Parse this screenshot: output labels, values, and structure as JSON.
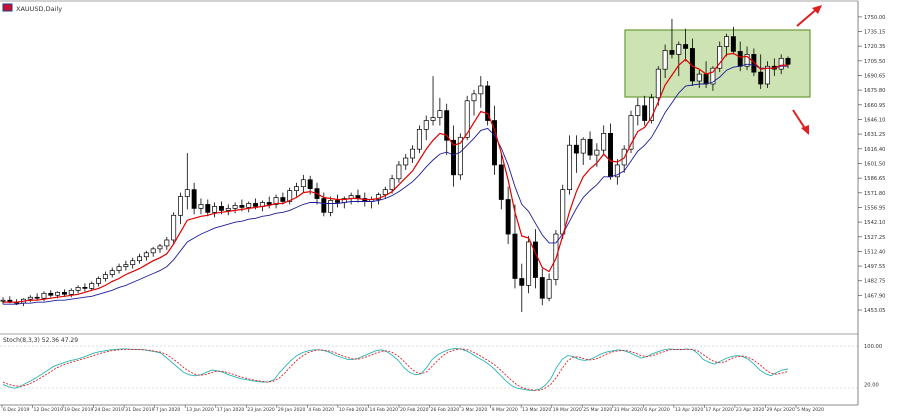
{
  "window": {
    "title": "XAUUSD,Daily",
    "indicator_label": "Stoch(8,3,3) 52.36 47.29"
  },
  "colors": {
    "background": "#ffffff",
    "candle": "#000000",
    "ema_fast": "#e00000",
    "ema_slow": "#1d1d9b",
    "stoch_main": "#2bb5b5",
    "stoch_signal": "#e02020",
    "highlight_fill": "#bcd99a",
    "highlight_stroke": "#6a9b3a",
    "arrow": "#e02020",
    "axis": "#555555"
  },
  "chart_data": [
    {
      "type": "candlestick",
      "instrument": "XAUUSD",
      "timeframe": "Daily",
      "ylim": [
        1447,
        1761
      ],
      "y_ticks": [
        "1750.00",
        "1735.15",
        "1720.35",
        "1705.50",
        "1690.65",
        "1675.80",
        "1660.95",
        "1646.10",
        "1631.25",
        "1616.40",
        "1601.50",
        "1586.65",
        "1571.80",
        "1556.95",
        "1542.10",
        "1527.25",
        "1512.40",
        "1497.55",
        "1482.75",
        "1467.90",
        "1453.05"
      ],
      "x_ticks": [
        "6 Dec 2019",
        "12 Dec 2019",
        "19 Dec 2019",
        "24 Dec 2019",
        "31 Dec 2019",
        "7 Jan 2020",
        "13 Jan 2020",
        "17 Jan 2020",
        "23 Jan 2020",
        "29 Jan 2020",
        "4 Feb 2020",
        "10 Feb 2020",
        "14 Feb 2020",
        "20 Feb 2020",
        "26 Feb 2020",
        "3 Mar 2020",
        "9 Mar 2020",
        "13 Mar 2020",
        "19 Mar 2020",
        "25 Mar 2020",
        "31 Mar 2020",
        "6 Apr 2020",
        "13 Apr 2020",
        "17 Apr 2020",
        "23 Apr 2020",
        "29 Apr 2020",
        "5 May 2020"
      ],
      "ema_fast_name": "",
      "ema_slow_name": "",
      "annotation": "consolidation box with breakout arrows up and down",
      "ohlc": [
        [
          1462,
          1466,
          1459,
          1463
        ],
        [
          1463,
          1467,
          1460,
          1461
        ],
        [
          1461,
          1464,
          1458,
          1460
        ],
        [
          1460,
          1465,
          1457,
          1464
        ],
        [
          1464,
          1468,
          1461,
          1466
        ],
        [
          1466,
          1470,
          1463,
          1465
        ],
        [
          1465,
          1472,
          1462,
          1470
        ],
        [
          1470,
          1473,
          1466,
          1468
        ],
        [
          1468,
          1472,
          1465,
          1471
        ],
        [
          1471,
          1474,
          1467,
          1469
        ],
        [
          1469,
          1475,
          1466,
          1473
        ],
        [
          1473,
          1478,
          1470,
          1476
        ],
        [
          1476,
          1480,
          1472,
          1475
        ],
        [
          1475,
          1482,
          1473,
          1480
        ],
        [
          1480,
          1487,
          1477,
          1485
        ],
        [
          1485,
          1492,
          1482,
          1489
        ],
        [
          1489,
          1496,
          1486,
          1493
        ],
        [
          1493,
          1500,
          1490,
          1497
        ],
        [
          1497,
          1503,
          1493,
          1499
        ],
        [
          1499,
          1506,
          1495,
          1503
        ],
        [
          1503,
          1510,
          1500,
          1507
        ],
        [
          1507,
          1513,
          1503,
          1511
        ],
        [
          1511,
          1517,
          1507,
          1515
        ],
        [
          1515,
          1520,
          1511,
          1518
        ],
        [
          1518,
          1527,
          1514,
          1524
        ],
        [
          1524,
          1552,
          1520,
          1549
        ],
        [
          1549,
          1572,
          1540,
          1568
        ],
        [
          1568,
          1612,
          1555,
          1575
        ],
        [
          1575,
          1582,
          1550,
          1556
        ],
        [
          1556,
          1566,
          1550,
          1560
        ],
        [
          1560,
          1565,
          1548,
          1552
        ],
        [
          1552,
          1562,
          1547,
          1558
        ],
        [
          1558,
          1563,
          1550,
          1554
        ],
        [
          1554,
          1560,
          1549,
          1556
        ],
        [
          1556,
          1562,
          1551,
          1559
        ],
        [
          1559,
          1565,
          1553,
          1557
        ],
        [
          1557,
          1563,
          1552,
          1561
        ],
        [
          1561,
          1566,
          1555,
          1558
        ],
        [
          1558,
          1564,
          1553,
          1562
        ],
        [
          1562,
          1568,
          1556,
          1560
        ],
        [
          1560,
          1570,
          1556,
          1567
        ],
        [
          1567,
          1572,
          1560,
          1563
        ],
        [
          1563,
          1577,
          1560,
          1574
        ],
        [
          1574,
          1582,
          1568,
          1578
        ],
        [
          1578,
          1590,
          1572,
          1585
        ],
        [
          1585,
          1589,
          1570,
          1576
        ],
        [
          1576,
          1582,
          1560,
          1566
        ],
        [
          1566,
          1572,
          1548,
          1552
        ],
        [
          1552,
          1568,
          1548,
          1564
        ],
        [
          1564,
          1570,
          1557,
          1562
        ],
        [
          1562,
          1568,
          1556,
          1566
        ],
        [
          1566,
          1572,
          1560,
          1569
        ],
        [
          1569,
          1575,
          1562,
          1566
        ],
        [
          1566,
          1572,
          1558,
          1563
        ],
        [
          1563,
          1568,
          1556,
          1565
        ],
        [
          1565,
          1572,
          1560,
          1570
        ],
        [
          1570,
          1578,
          1566,
          1575
        ],
        [
          1575,
          1590,
          1571,
          1586
        ],
        [
          1586,
          1604,
          1582,
          1600
        ],
        [
          1600,
          1611,
          1595,
          1607
        ],
        [
          1607,
          1620,
          1602,
          1616
        ],
        [
          1616,
          1640,
          1612,
          1636
        ],
        [
          1636,
          1650,
          1625,
          1645
        ],
        [
          1645,
          1690,
          1640,
          1648
        ],
        [
          1648,
          1668,
          1640,
          1655
        ],
        [
          1655,
          1662,
          1610,
          1625
        ],
        [
          1625,
          1640,
          1578,
          1590
        ],
        [
          1590,
          1632,
          1585,
          1628
        ],
        [
          1628,
          1670,
          1625,
          1665
        ],
        [
          1665,
          1676,
          1650,
          1672
        ],
        [
          1672,
          1690,
          1658,
          1680
        ],
        [
          1680,
          1685,
          1640,
          1645
        ],
        [
          1645,
          1660,
          1590,
          1600
        ],
        [
          1600,
          1612,
          1555,
          1565
        ],
        [
          1565,
          1578,
          1520,
          1530
        ],
        [
          1530,
          1560,
          1475,
          1485
        ],
        [
          1485,
          1500,
          1451,
          1478
        ],
        [
          1478,
          1528,
          1470,
          1522
        ],
        [
          1522,
          1535,
          1475,
          1486
        ],
        [
          1486,
          1495,
          1458,
          1465
        ],
        [
          1465,
          1490,
          1462,
          1484
        ],
        [
          1484,
          1534,
          1478,
          1530
        ],
        [
          1530,
          1580,
          1525,
          1575
        ],
        [
          1575,
          1630,
          1570,
          1620
        ],
        [
          1620,
          1630,
          1592,
          1612
        ],
        [
          1612,
          1628,
          1600,
          1626
        ],
        [
          1626,
          1634,
          1605,
          1610
        ],
        [
          1610,
          1622,
          1598,
          1615
        ],
        [
          1615,
          1640,
          1610,
          1632
        ],
        [
          1632,
          1642,
          1585,
          1588
        ],
        [
          1588,
          1606,
          1580,
          1600
        ],
        [
          1600,
          1620,
          1592,
          1616
        ],
        [
          1616,
          1655,
          1612,
          1650
        ],
        [
          1650,
          1668,
          1640,
          1660
        ],
        [
          1660,
          1670,
          1640,
          1645
        ],
        [
          1645,
          1672,
          1642,
          1668
        ],
        [
          1668,
          1700,
          1660,
          1697
        ],
        [
          1697,
          1722,
          1688,
          1716
        ],
        [
          1716,
          1748,
          1708,
          1712
        ],
        [
          1712,
          1725,
          1690,
          1722
        ],
        [
          1722,
          1738,
          1705,
          1718
        ],
        [
          1718,
          1728,
          1680,
          1685
        ],
        [
          1685,
          1696,
          1678,
          1692
        ],
        [
          1692,
          1705,
          1678,
          1682
        ],
        [
          1682,
          1700,
          1675,
          1698
        ],
        [
          1698,
          1725,
          1694,
          1720
        ],
        [
          1720,
          1733,
          1710,
          1730
        ],
        [
          1730,
          1740,
          1712,
          1715
        ],
        [
          1715,
          1725,
          1695,
          1700
        ],
        [
          1700,
          1720,
          1696,
          1712
        ],
        [
          1712,
          1718,
          1690,
          1694
        ],
        [
          1694,
          1712,
          1677,
          1682
        ],
        [
          1682,
          1705,
          1678,
          1700
        ],
        [
          1700,
          1708,
          1690,
          1697
        ],
        [
          1697,
          1712,
          1692,
          1708
        ],
        [
          1708,
          1710,
          1698,
          1702
        ]
      ],
      "ema_fast": [
        1461,
        1461,
        1461,
        1462,
        1463,
        1463,
        1464,
        1465,
        1466,
        1467,
        1468,
        1469,
        1471,
        1473,
        1475,
        1478,
        1482,
        1485,
        1489,
        1492,
        1495,
        1499,
        1503,
        1506,
        1510,
        1520,
        1532,
        1544,
        1546,
        1548,
        1549,
        1551,
        1552,
        1553,
        1554,
        1555,
        1556,
        1557,
        1558,
        1559,
        1561,
        1561,
        1564,
        1567,
        1572,
        1573,
        1571,
        1567,
        1566,
        1565,
        1565,
        1566,
        1566,
        1565,
        1565,
        1566,
        1569,
        1573,
        1580,
        1587,
        1594,
        1605,
        1616,
        1625,
        1632,
        1630,
        1620,
        1622,
        1632,
        1643,
        1654,
        1652,
        1636,
        1612,
        1585,
        1552,
        1528,
        1526,
        1511,
        1496,
        1492,
        1505,
        1528,
        1553,
        1573,
        1588,
        1596,
        1602,
        1611,
        1604,
        1603,
        1607,
        1621,
        1634,
        1638,
        1648,
        1664,
        1681,
        1691,
        1701,
        1707,
        1700,
        1697,
        1692,
        1694,
        1703,
        1712,
        1713,
        1709,
        1710,
        1704,
        1697,
        1698,
        1698,
        1701,
        1701
      ],
      "ema_slow": [
        1459,
        1459,
        1459,
        1460,
        1460,
        1461,
        1461,
        1462,
        1463,
        1463,
        1464,
        1465,
        1466,
        1467,
        1469,
        1471,
        1473,
        1476,
        1478,
        1481,
        1484,
        1487,
        1490,
        1493,
        1497,
        1504,
        1513,
        1522,
        1526,
        1530,
        1533,
        1536,
        1538,
        1540,
        1542,
        1543,
        1545,
        1546,
        1548,
        1549,
        1551,
        1552,
        1554,
        1557,
        1560,
        1562,
        1562,
        1561,
        1561,
        1561,
        1562,
        1563,
        1563,
        1563,
        1563,
        1564,
        1566,
        1569,
        1573,
        1578,
        1583,
        1590,
        1598,
        1605,
        1611,
        1613,
        1610,
        1613,
        1620,
        1627,
        1635,
        1637,
        1630,
        1617,
        1600,
        1578,
        1560,
        1553,
        1541,
        1529,
        1521,
        1521,
        1530,
        1543,
        1556,
        1567,
        1574,
        1580,
        1588,
        1588,
        1590,
        1594,
        1604,
        1614,
        1620,
        1628,
        1640,
        1653,
        1663,
        1673,
        1680,
        1681,
        1682,
        1682,
        1684,
        1689,
        1696,
        1699,
        1700,
        1702,
        1701,
        1698,
        1698,
        1698,
        1700,
        1700
      ]
    },
    {
      "type": "line",
      "name": "Stoch(8,3,3)",
      "ylim": [
        0,
        100
      ],
      "y_ticks": [
        "100.00",
        "20.00"
      ],
      "main": [
        20,
        15,
        12,
        15,
        22,
        28,
        35,
        42,
        50,
        58,
        62,
        66,
        70,
        72,
        76,
        80,
        85,
        88,
        90,
        92,
        93,
        94,
        94,
        93,
        93,
        92,
        90,
        88,
        85,
        75,
        65,
        55,
        45,
        40,
        38,
        40,
        45,
        50,
        48,
        45,
        40,
        36,
        32,
        30,
        28,
        26,
        25,
        25,
        30,
        45,
        58,
        70,
        80,
        86,
        90,
        92,
        92,
        90,
        86,
        80,
        76,
        72,
        72,
        75,
        80,
        85,
        90,
        92,
        88,
        80,
        70,
        55,
        45,
        40,
        42,
        55,
        72,
        82,
        88,
        93,
        95,
        94,
        90,
        84,
        76,
        70,
        62,
        52,
        40,
        28,
        18,
        12,
        10,
        8,
        7,
        10,
        18,
        32,
        55,
        72,
        80,
        78,
        72,
        70,
        72,
        78,
        84,
        88,
        90,
        92,
        90,
        86,
        80,
        75,
        78,
        84,
        88,
        92,
        94,
        93,
        92,
        94,
        93,
        85,
        72,
        66,
        62,
        68,
        74,
        78,
        80,
        78,
        72,
        62,
        50,
        42,
        38,
        45,
        50,
        52
      ],
      "signal": [
        25,
        20,
        17,
        16,
        18,
        23,
        29,
        36,
        43,
        51,
        57,
        62,
        66,
        69,
        73,
        76,
        80,
        84,
        87,
        90,
        91,
        93,
        93,
        93,
        93,
        92,
        91,
        89,
        87,
        82,
        74,
        65,
        55,
        47,
        41,
        39,
        41,
        45,
        48,
        47,
        44,
        40,
        36,
        33,
        30,
        28,
        26,
        25,
        27,
        34,
        45,
        58,
        70,
        79,
        86,
        90,
        92,
        91,
        89,
        85,
        80,
        76,
        73,
        73,
        76,
        80,
        85,
        89,
        90,
        86,
        79,
        68,
        56,
        46,
        42,
        46,
        58,
        70,
        81,
        88,
        92,
        94,
        93,
        89,
        83,
        76,
        69,
        61,
        51,
        40,
        29,
        19,
        13,
        10,
        8,
        8,
        12,
        20,
        35,
        53,
        69,
        77,
        77,
        73,
        71,
        73,
        78,
        84,
        88,
        90,
        91,
        89,
        85,
        80,
        78,
        80,
        84,
        88,
        92,
        93,
        93,
        93,
        93,
        90,
        82,
        74,
        67,
        65,
        68,
        74,
        78,
        79,
        76,
        70,
        61,
        51,
        43,
        41,
        44,
        47
      ]
    }
  ]
}
